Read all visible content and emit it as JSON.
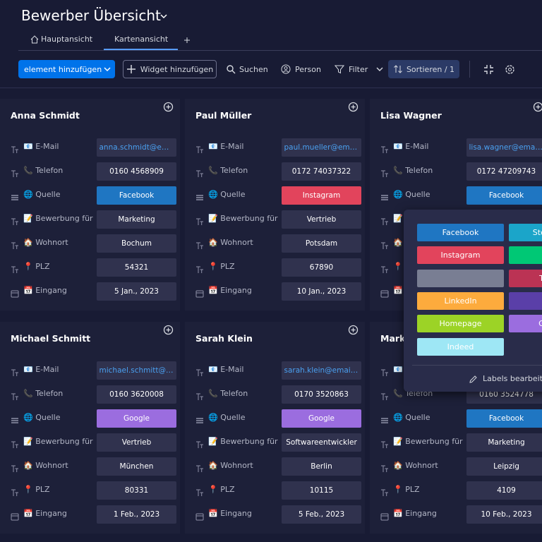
{
  "header": {
    "title": "Bewerber Übersicht",
    "tabs": [
      "Hauptansicht",
      "Kartenansicht"
    ]
  },
  "toolbar": {
    "add_item": "element hinzufügen",
    "add_widget": "Widget hinzufügen",
    "search": "Suchen",
    "person": "Person",
    "filter": "Filter",
    "sort": "Sortieren / 1"
  },
  "field_labels": [
    "📧 E-Mail",
    "📞 Telefon",
    "🌐 Quelle",
    "📝 Bewerbung für",
    "🏠 Wohnort",
    "📍 PLZ",
    "📅 Eingang"
  ],
  "cards": [
    {
      "name": "Anna Schmidt",
      "values": [
        "anna.schmidt@email.com",
        "0160 4568909",
        "Facebook",
        "Marketing",
        "Bochum",
        "54321",
        "5 Jan., 2023"
      ]
    },
    {
      "name": "Paul Müller",
      "values": [
        "paul.mueller@email.com",
        "0172 74037322",
        "Instagram",
        "Vertrieb",
        "Potsdam",
        "67890",
        "10 Jan., 2023"
      ]
    },
    {
      "name": "Lisa Wagner",
      "values": [
        "lisa.wagner@email.com",
        "0172 47209743",
        "Facebook",
        null,
        null,
        null,
        null
      ]
    },
    {
      "name": "Michael Schmitt",
      "values": [
        "michael.schmitt@email.com",
        "0160 3620008",
        "Google",
        "Vertrieb",
        "München",
        "80331",
        "1 Feb., 2023"
      ]
    },
    {
      "name": "Sarah Klein",
      "values": [
        "sarah.klein@email.com",
        "0170 3520863",
        "Google",
        "Softwareentwickler",
        "Berlin",
        "10115",
        "5 Feb., 2023"
      ]
    },
    {
      "name": "Markus",
      "values": [
        null,
        "0160 3524778",
        "Facebook",
        "Marketing",
        "Leipzig",
        "4109",
        "10 Feb., 2023"
      ]
    }
  ],
  "label_picker": {
    "options": [
      {
        "name": "Facebook",
        "color": "#1f76c2"
      },
      {
        "name": "Stepstone",
        "color": "#1ba5c9"
      },
      {
        "name": "Instagram",
        "color": "#e2445c"
      },
      {
        "color": "#00c875"
      },
      {
        "color": "#797e93"
      },
      {
        "name": "Twitter",
        "color": "#bb3354"
      },
      {
        "name": "LinkedIn",
        "color": "#fdab3d"
      },
      {
        "color": "#5a3fa8"
      },
      {
        "name": "Homepage",
        "color": "#9cd326"
      },
      {
        "name": "Google",
        "color": "#9b6ddf"
      },
      {
        "name": "Indeed",
        "color": "#9ee7f5"
      }
    ],
    "edit": "Labels bearbeiten"
  }
}
